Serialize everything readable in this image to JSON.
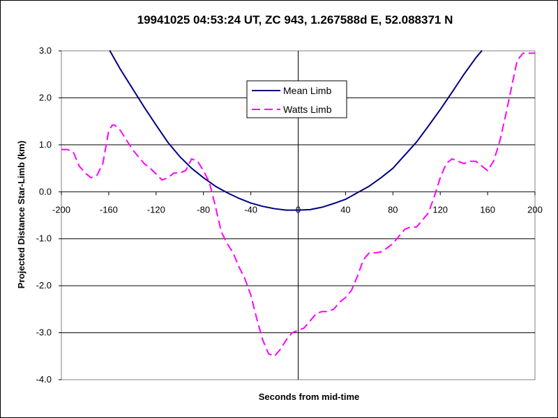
{
  "chart_data": {
    "type": "line",
    "title": "19941025 04:53:24 UT, ZC 943, 1.267588d E, 52.088371 N",
    "xlabel": "Seconds from mid-time",
    "ylabel": "Projected Distance Star-Limb (km)",
    "xlim": [
      -200,
      200
    ],
    "ylim": [
      -4.0,
      3.0
    ],
    "x_ticks": [
      -200,
      -160,
      -120,
      -80,
      -40,
      0,
      40,
      80,
      120,
      160,
      200
    ],
    "x_tick_labels": [
      "-200",
      "-160",
      "-120",
      "-80",
      "-40",
      "0",
      "40",
      "80",
      "120",
      "160",
      "200"
    ],
    "y_ticks": [
      3.0,
      2.0,
      1.0,
      0.0,
      -1.0,
      -2.0,
      -3.0,
      -4.0
    ],
    "y_tick_labels": [
      "3.0",
      "2.0",
      "1.0",
      "0.0",
      "-1.0",
      "-2.0",
      "-3.0",
      "-4.0"
    ],
    "grid": "horizontal",
    "legend_position": "top-center",
    "series": [
      {
        "name": "Mean Limb",
        "color": "#000080",
        "style": "solid",
        "x": [
          -159,
          -150,
          -140,
          -130,
          -120,
          -110,
          -100,
          -90,
          -80,
          -70,
          -60,
          -50,
          -40,
          -30,
          -20,
          -10,
          0,
          10,
          20,
          30,
          40,
          50,
          60,
          70,
          80,
          90,
          100,
          110,
          120,
          130,
          140,
          150,
          155
        ],
        "y": [
          3.0,
          2.6,
          2.2,
          1.8,
          1.42,
          1.05,
          0.75,
          0.5,
          0.3,
          0.12,
          -0.02,
          -0.14,
          -0.24,
          -0.31,
          -0.36,
          -0.39,
          -0.39,
          -0.38,
          -0.33,
          -0.25,
          -0.16,
          -0.02,
          0.12,
          0.3,
          0.5,
          0.78,
          1.06,
          1.4,
          1.75,
          2.12,
          2.5,
          2.85,
          3.0
        ]
      },
      {
        "name": "Watts Limb",
        "color": "#ff00ff",
        "style": "dashed",
        "x": [
          -200,
          -195,
          -190,
          -185,
          -180,
          -175,
          -170,
          -165,
          -160,
          -157,
          -155,
          -150,
          -145,
          -140,
          -135,
          -130,
          -125,
          -120,
          -115,
          -110,
          -105,
          -100,
          -95,
          -90,
          -85,
          -80,
          -75,
          -70,
          -65,
          -60,
          -55,
          -50,
          -45,
          -40,
          -35,
          -30,
          -25,
          -20,
          -15,
          -10,
          -5,
          0,
          5,
          10,
          15,
          20,
          25,
          30,
          35,
          40,
          45,
          50,
          55,
          60,
          65,
          70,
          75,
          80,
          85,
          90,
          95,
          100,
          105,
          110,
          115,
          120,
          125,
          130,
          135,
          140,
          145,
          150,
          155,
          160,
          165,
          170,
          175,
          180,
          185,
          190,
          195,
          200
        ],
        "y": [
          0.9,
          0.9,
          0.85,
          0.55,
          0.4,
          0.3,
          0.35,
          0.6,
          1.3,
          1.42,
          1.42,
          1.3,
          1.1,
          0.9,
          0.75,
          0.6,
          0.5,
          0.38,
          0.25,
          0.3,
          0.4,
          0.4,
          0.45,
          0.7,
          0.65,
          0.45,
          0.2,
          -0.3,
          -0.85,
          -1.1,
          -1.3,
          -1.6,
          -1.85,
          -2.2,
          -2.7,
          -3.15,
          -3.45,
          -3.5,
          -3.35,
          -3.15,
          -3.0,
          -2.95,
          -2.9,
          -2.75,
          -2.6,
          -2.55,
          -2.55,
          -2.5,
          -2.35,
          -2.25,
          -2.1,
          -1.8,
          -1.45,
          -1.3,
          -1.3,
          -1.28,
          -1.2,
          -1.1,
          -0.95,
          -0.8,
          -0.75,
          -0.75,
          -0.6,
          -0.45,
          -0.1,
          0.3,
          0.6,
          0.7,
          0.65,
          0.6,
          0.65,
          0.65,
          0.55,
          0.45,
          0.65,
          1.05,
          1.6,
          2.2,
          2.8,
          2.95,
          2.95,
          2.95
        ]
      }
    ]
  }
}
